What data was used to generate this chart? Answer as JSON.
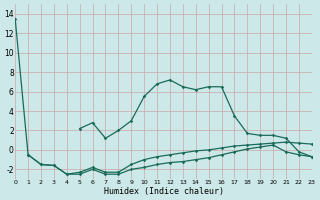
{
  "xlabel": "Humidex (Indice chaleur)",
  "bg_color": "#cce8e8",
  "grid_color": "#c8a8a8",
  "line_color": "#1a6b5a",
  "x_min": 0,
  "x_max": 23,
  "y_min": -3,
  "y_max": 15,
  "yticks": [
    -2,
    0,
    2,
    4,
    6,
    8,
    10,
    12,
    14
  ],
  "xticks": [
    0,
    1,
    2,
    3,
    4,
    5,
    6,
    7,
    8,
    9,
    10,
    11,
    12,
    13,
    14,
    15,
    16,
    17,
    18,
    19,
    20,
    21,
    22,
    23
  ],
  "line1_x": [
    0,
    1,
    2,
    3,
    4,
    5,
    6,
    7,
    8,
    9,
    10,
    11,
    12,
    13,
    14,
    15,
    16,
    17,
    18,
    19,
    20,
    21,
    22,
    23
  ],
  "line1_y": [
    13.5,
    -0.5,
    -1.5,
    -1.6,
    -2.5,
    -2.5,
    -2.0,
    -2.5,
    -2.5,
    -2.0,
    -1.8,
    -1.5,
    -1.3,
    -1.2,
    -1.0,
    -0.8,
    -0.5,
    -0.2,
    0.1,
    0.3,
    0.5,
    -0.2,
    -0.5,
    -0.7
  ],
  "line2_x": [
    1,
    2,
    3,
    4,
    5,
    6,
    7,
    8,
    9,
    10,
    11,
    12,
    13,
    14,
    15,
    16,
    17,
    18,
    19,
    20,
    21,
    22,
    23
  ],
  "line2_y": [
    -0.5,
    -1.5,
    -1.6,
    -2.5,
    -2.3,
    -1.8,
    -2.3,
    -2.3,
    -1.5,
    -1.0,
    -0.7,
    -0.5,
    -0.3,
    -0.1,
    0.0,
    0.2,
    0.4,
    0.5,
    0.6,
    0.7,
    0.8,
    0.7,
    0.6
  ],
  "line3_x": [
    5,
    6,
    7,
    8,
    9,
    10,
    11,
    12,
    13,
    14,
    15,
    16,
    17,
    18,
    19,
    20,
    21,
    22,
    23
  ],
  "line3_y": [
    2.2,
    2.8,
    1.2,
    2.0,
    3.0,
    5.5,
    6.8,
    7.2,
    6.5,
    6.2,
    6.5,
    6.5,
    3.5,
    1.7,
    1.5,
    1.5,
    1.2,
    -0.2,
    -0.7
  ]
}
